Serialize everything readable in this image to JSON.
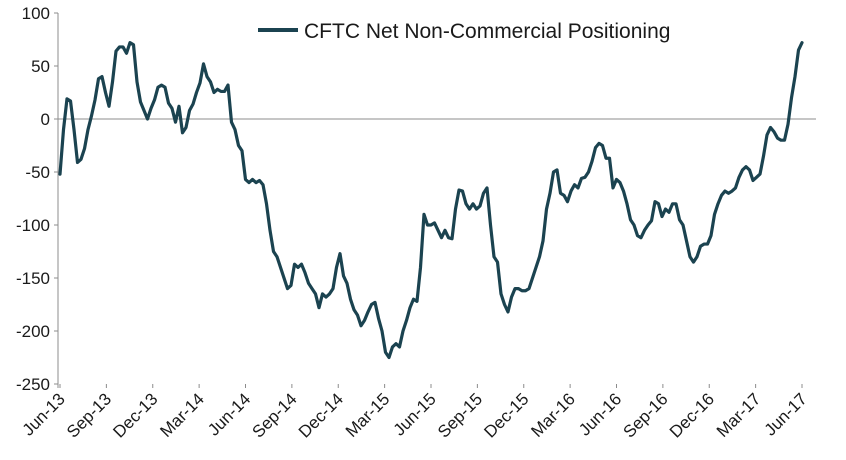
{
  "chart_data": {
    "type": "line",
    "title": "",
    "xlabel": "",
    "ylabel": "",
    "ylim": [
      -250,
      100
    ],
    "yticks": [
      100,
      50,
      0,
      -50,
      -100,
      -150,
      -200,
      -250
    ],
    "xticks": [
      "Jun-13",
      "Sep-13",
      "Dec-13",
      "Mar-14",
      "Jun-14",
      "Sep-14",
      "Dec-14",
      "Mar-15",
      "Jun-15",
      "Sep-15",
      "Dec-15",
      "Mar-16",
      "Jun-16",
      "Sep-16",
      "Dec-16",
      "Mar-17",
      "Jun-17"
    ],
    "legend": {
      "position": "top-center",
      "entries": [
        "CFTC Net Non-Commercial Positioning"
      ]
    },
    "grid": false,
    "colors": {
      "line": "#1b4350",
      "axis": "#8c8c8c",
      "text": "#1a1a1a"
    },
    "series": [
      {
        "name": "CFTC Net Non-Commercial Positioning",
        "values": [
          -52,
          -10,
          19,
          17,
          -10,
          -41,
          -38,
          -28,
          -10,
          3,
          18,
          38,
          40,
          25,
          12,
          35,
          64,
          68,
          68,
          62,
          72,
          70,
          35,
          16,
          8,
          0,
          10,
          18,
          30,
          32,
          30,
          15,
          10,
          -3,
          12,
          -13,
          -8,
          8,
          14,
          25,
          34,
          52,
          40,
          35,
          25,
          28,
          26,
          26,
          32,
          -3,
          -10,
          -25,
          -30,
          -57,
          -60,
          -57,
          -60,
          -58,
          -62,
          -80,
          -105,
          -125,
          -130,
          -140,
          -150,
          -160,
          -157,
          -137,
          -140,
          -137,
          -145,
          -155,
          -160,
          -165,
          -178,
          -165,
          -168,
          -165,
          -160,
          -140,
          -127,
          -148,
          -155,
          -170,
          -180,
          -185,
          -195,
          -190,
          -182,
          -175,
          -173,
          -188,
          -200,
          -220,
          -225,
          -215,
          -212,
          -215,
          -200,
          -190,
          -178,
          -170,
          -172,
          -140,
          -90,
          -100,
          -100,
          -98,
          -105,
          -112,
          -105,
          -112,
          -113,
          -85,
          -67,
          -68,
          -80,
          -85,
          -80,
          -85,
          -82,
          -70,
          -65,
          -100,
          -130,
          -135,
          -165,
          -175,
          -182,
          -168,
          -160,
          -160,
          -162,
          -162,
          -160,
          -150,
          -140,
          -130,
          -115,
          -85,
          -70,
          -50,
          -48,
          -70,
          -72,
          -78,
          -68,
          -62,
          -65,
          -56,
          -55,
          -50,
          -40,
          -27,
          -23,
          -25,
          -37,
          -37,
          -65,
          -57,
          -60,
          -68,
          -80,
          -95,
          -100,
          -110,
          -112,
          -105,
          -100,
          -96,
          -78,
          -80,
          -92,
          -85,
          -88,
          -80,
          -80,
          -95,
          -100,
          -115,
          -130,
          -135,
          -130,
          -120,
          -118,
          -118,
          -110,
          -90,
          -80,
          -72,
          -68,
          -70,
          -68,
          -65,
          -55,
          -48,
          -45,
          -48,
          -58,
          -55,
          -52,
          -35,
          -15,
          -8,
          -12,
          -18,
          -20,
          -20,
          -5,
          20,
          40,
          65,
          72
        ]
      }
    ]
  }
}
